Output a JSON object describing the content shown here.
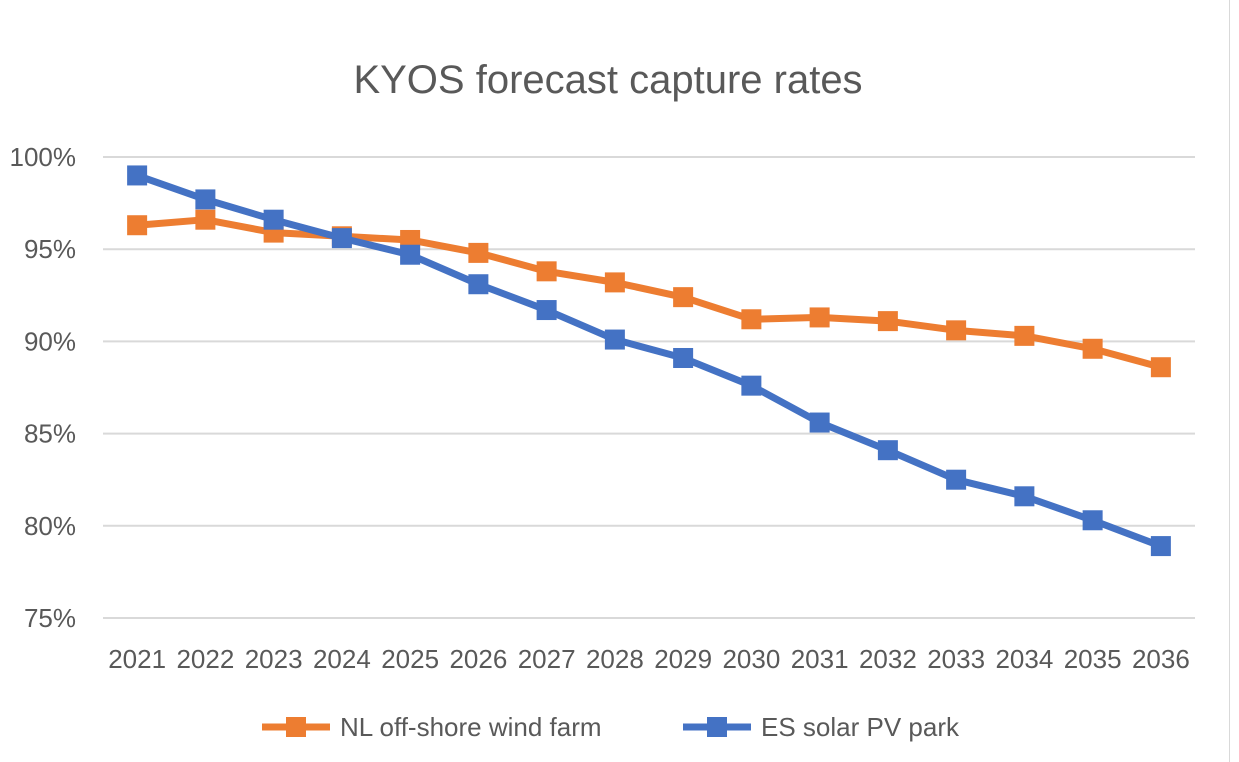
{
  "chart_data": {
    "type": "line",
    "title": "KYOS forecast capture rates",
    "categories": [
      "2021",
      "2022",
      "2023",
      "2024",
      "2025",
      "2026",
      "2027",
      "2028",
      "2029",
      "2030",
      "2031",
      "2032",
      "2033",
      "2034",
      "2035",
      "2036"
    ],
    "y_ticks": [
      "100%",
      "95%",
      "90%",
      "85%",
      "80%",
      "75%"
    ],
    "ylim": [
      75,
      100
    ],
    "y_unit": "%",
    "grid": "horizontal",
    "legend_position": "bottom",
    "series": [
      {
        "name": "NL off-shore wind farm",
        "color": "#ED7D31",
        "values": [
          96.3,
          96.6,
          95.9,
          95.7,
          95.5,
          94.8,
          93.8,
          93.2,
          92.4,
          91.2,
          91.3,
          91.1,
          90.6,
          90.3,
          89.6,
          88.6
        ]
      },
      {
        "name": "ES solar PV park",
        "color": "#4472C4",
        "values": [
          99.0,
          97.7,
          96.6,
          95.6,
          94.7,
          93.1,
          91.7,
          90.1,
          89.1,
          87.6,
          85.6,
          84.1,
          82.5,
          81.6,
          80.3,
          78.9
        ]
      }
    ]
  }
}
